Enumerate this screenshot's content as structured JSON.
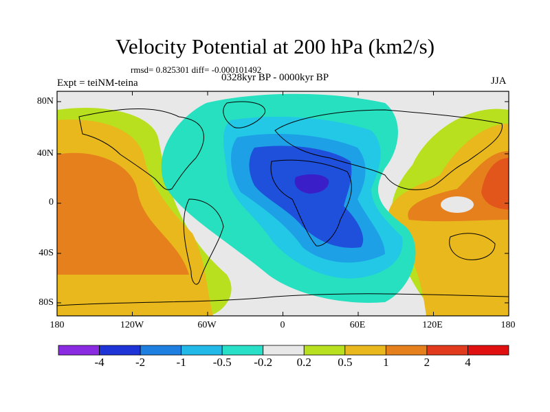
{
  "title": "Velocity Potential at 200 hPa (km2/s)",
  "stats": "rmsd= 0.825301 diff= -0.000101492",
  "experiment": "Expt = teiNM-teina",
  "period": "0328kyr BP - 0000kyr BP",
  "season": "JJA",
  "y_ticks": [
    "80N",
    "40N",
    "0",
    "40S",
    "80S"
  ],
  "x_ticks": [
    "180",
    "120W",
    "60W",
    "0",
    "60E",
    "120E",
    "180"
  ],
  "colorbar": {
    "labels": [
      "-4",
      "-2",
      "-1",
      "-0.5",
      "-0.2",
      "0.2",
      "0.5",
      "1",
      "2",
      "4"
    ],
    "colors": [
      "#8a2be2",
      "#1e34d6",
      "#1f7fe0",
      "#22b8e8",
      "#28e0c8",
      "#e8e8e8",
      "#b8e01e",
      "#e8b81c",
      "#e6801c",
      "#e23a1c",
      "#e01010"
    ]
  },
  "field_colors": {
    "c_neg4": "#3a1ec8",
    "c_neg2": "#1e50dc",
    "c_neg1": "#1ea0e6",
    "c_neg05": "#22c8e6",
    "c_neg02": "#26e0c0",
    "c_zero": "#e8e8e8",
    "c_pos02": "#b8e01e",
    "c_pos05": "#e8b81c",
    "c_pos1": "#e6801c",
    "c_pos2": "#e2561c"
  }
}
